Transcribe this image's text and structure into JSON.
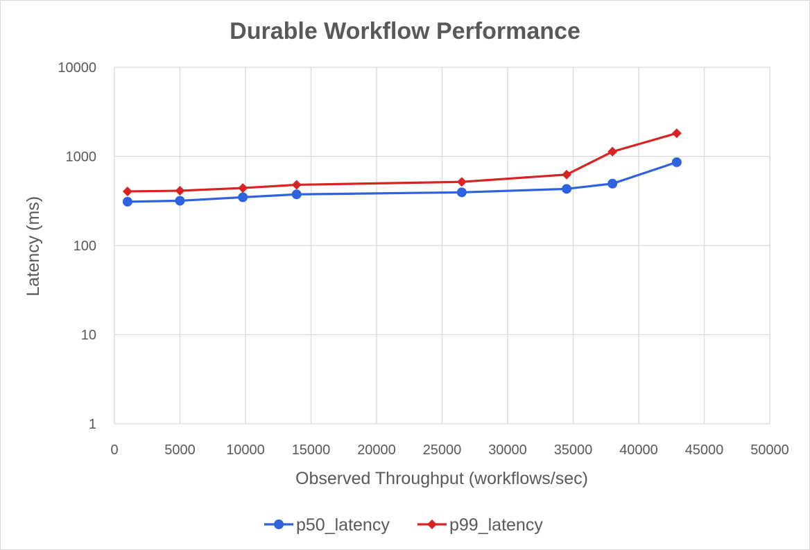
{
  "chart_data": {
    "type": "line",
    "title": "Durable Workflow Performance",
    "xlabel": "Observed Throughput (workflows/sec)",
    "ylabel": "Latency (ms)",
    "xlim": [
      0,
      50000
    ],
    "ylim": [
      1,
      10000
    ],
    "yscale": "log",
    "x_ticks": [
      "0",
      "5000",
      "10000",
      "15000",
      "20000",
      "25000",
      "30000",
      "35000",
      "40000",
      "45000",
      "50000"
    ],
    "y_ticks": [
      "1",
      "10",
      "100",
      "1000",
      "10000"
    ],
    "grid": true,
    "legend": "bottom",
    "series": [
      {
        "name": "p50_latency",
        "color": "#2e62de",
        "marker": "circle",
        "points": [
          [
            1000,
            310
          ],
          [
            5000,
            318
          ],
          [
            9800,
            348
          ],
          [
            13900,
            375
          ],
          [
            26500,
            395
          ],
          [
            34500,
            432
          ],
          [
            38000,
            495
          ],
          [
            42900,
            860
          ]
        ]
      },
      {
        "name": "p99_latency",
        "color": "#d92323",
        "marker": "diamond",
        "points": [
          [
            1000,
            405
          ],
          [
            5000,
            412
          ],
          [
            9800,
            442
          ],
          [
            13900,
            480
          ],
          [
            26500,
            518
          ],
          [
            34500,
            625
          ],
          [
            38000,
            1130
          ],
          [
            42900,
            1820
          ]
        ]
      }
    ]
  }
}
